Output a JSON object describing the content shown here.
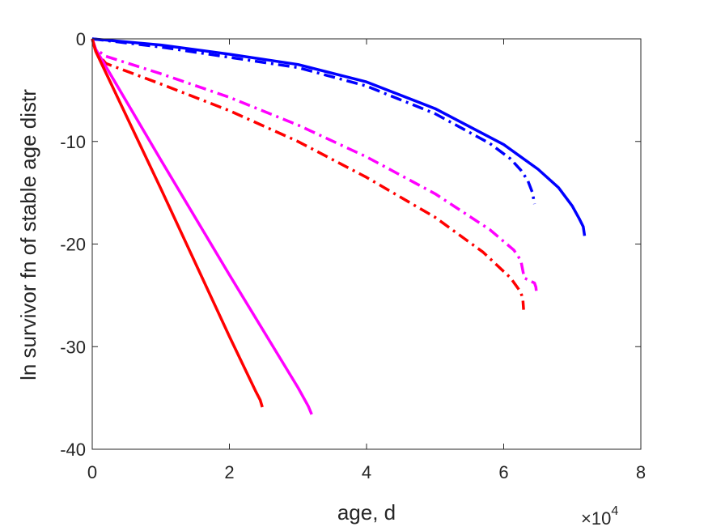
{
  "chart_data": {
    "type": "line",
    "title": "",
    "xlabel": "age, d",
    "ylabel": "ln survivor fn of stable age distr",
    "x_exponent_label": {
      "base": "×10",
      "exponent": "4"
    },
    "xlim": [
      0,
      80000
    ],
    "ylim": [
      -40,
      0
    ],
    "x_ticks": [
      0,
      20000,
      40000,
      60000,
      80000
    ],
    "x_tick_labels": [
      "0",
      "2",
      "4",
      "6",
      "8"
    ],
    "y_ticks": [
      0,
      -10,
      -20,
      -30,
      -40
    ],
    "y_tick_labels": [
      "0",
      "-10",
      "-20",
      "-30",
      "-40"
    ],
    "grid": false,
    "legend": "none",
    "series": [
      {
        "color": "#0000ff",
        "style": "solid",
        "x": [
          0,
          10000,
          20000,
          30000,
          40000,
          50000,
          60000,
          65000,
          68000,
          70000,
          71000,
          71600,
          71800
        ],
        "y": [
          0,
          -0.6,
          -1.5,
          -2.5,
          -4.2,
          -6.8,
          -10.3,
          -12.7,
          -14.5,
          -16.3,
          -17.5,
          -18.3,
          -19.2
        ]
      },
      {
        "color": "#0000ff",
        "style": "dashdot",
        "x": [
          0,
          10000,
          20000,
          30000,
          40000,
          50000,
          58000,
          61000,
          62500,
          63500,
          64200,
          64500
        ],
        "y": [
          0,
          -0.8,
          -1.8,
          -2.8,
          -4.6,
          -7.3,
          -10.2,
          -11.7,
          -12.8,
          -13.8,
          -15,
          -16.1
        ]
      },
      {
        "color": "#ff00ff",
        "style": "dashdot",
        "x": [
          0,
          500,
          2000,
          10000,
          20000,
          30000,
          40000,
          50000,
          58000,
          61500,
          62500,
          63000,
          64500,
          64700,
          64800
        ],
        "y": [
          0,
          -1,
          -1.7,
          -3.4,
          -5.7,
          -8.4,
          -11.5,
          -15.1,
          -18.6,
          -20.6,
          -21.6,
          -23.3,
          -23.8,
          -24.2,
          -24.9
        ]
      },
      {
        "color": "#ff0000",
        "style": "dashdot",
        "x": [
          0,
          500,
          2000,
          10000,
          20000,
          30000,
          40000,
          50000,
          57000,
          61000,
          62500,
          62800,
          62900
        ],
        "y": [
          0,
          -1.2,
          -2.4,
          -4.4,
          -7,
          -10,
          -13.5,
          -17.4,
          -20.8,
          -23.3,
          -24.7,
          -25.4,
          -26.4
        ]
      },
      {
        "color": "#ff00ff",
        "style": "solid",
        "x": [
          0,
          500,
          10000,
          20000,
          30000,
          31500,
          32000
        ],
        "y": [
          0,
          -1,
          -11.8,
          -23,
          -34,
          -35.8,
          -36.6
        ]
      },
      {
        "color": "#ff0000",
        "style": "solid",
        "x": [
          0,
          500,
          10000,
          20000,
          23800,
          24500,
          24800
        ],
        "y": [
          0,
          -1.2,
          -14.6,
          -29,
          -34.3,
          -35.2,
          -35.9
        ]
      }
    ]
  }
}
